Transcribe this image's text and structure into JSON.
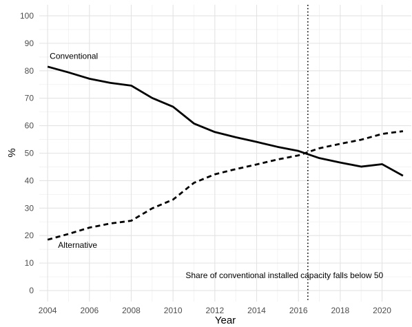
{
  "chart_data": {
    "type": "line",
    "xlabel": "Year",
    "ylabel": "%",
    "xlim": [
      2003.6,
      2021.4
    ],
    "ylim": [
      -4,
      104
    ],
    "x_ticks": [
      2004,
      2006,
      2008,
      2010,
      2012,
      2014,
      2016,
      2018,
      2020
    ],
    "y_ticks": [
      0,
      10,
      20,
      30,
      40,
      50,
      60,
      70,
      80,
      90,
      100
    ],
    "grid": true,
    "x": [
      2004,
      2005,
      2006,
      2007,
      2008,
      2009,
      2010,
      2011,
      2012,
      2013,
      2014,
      2015,
      2016,
      2017,
      2018,
      2019,
      2020,
      2021
    ],
    "series": [
      {
        "name": "Conventional",
        "line_style": "solid",
        "color": "#000000",
        "values": [
          81.5,
          79.4,
          77.1,
          75.6,
          74.6,
          70.1,
          66.9,
          60.8,
          57.7,
          55.8,
          54.1,
          52.3,
          50.8,
          48.2,
          46.6,
          45.1,
          46.0,
          41.8
        ]
      },
      {
        "name": "Alternative",
        "line_style": "dashed",
        "color": "#000000",
        "values": [
          18.5,
          20.6,
          22.9,
          24.4,
          25.4,
          29.9,
          33.1,
          39.2,
          42.3,
          44.2,
          45.9,
          47.7,
          49.2,
          51.8,
          53.4,
          54.9,
          57.0,
          58.0
        ]
      }
    ],
    "vline": {
      "x": 2016.45,
      "line_style": "dotted"
    },
    "annotations": [
      {
        "text": "Conventional",
        "x": 2004.1,
        "y": 84.3
      },
      {
        "text": "Alternative",
        "x": 2004.5,
        "y": 15.5
      },
      {
        "text": "Share of conventional installed capacity falls below 50",
        "x": 2010.6,
        "y": 4.5
      }
    ]
  }
}
